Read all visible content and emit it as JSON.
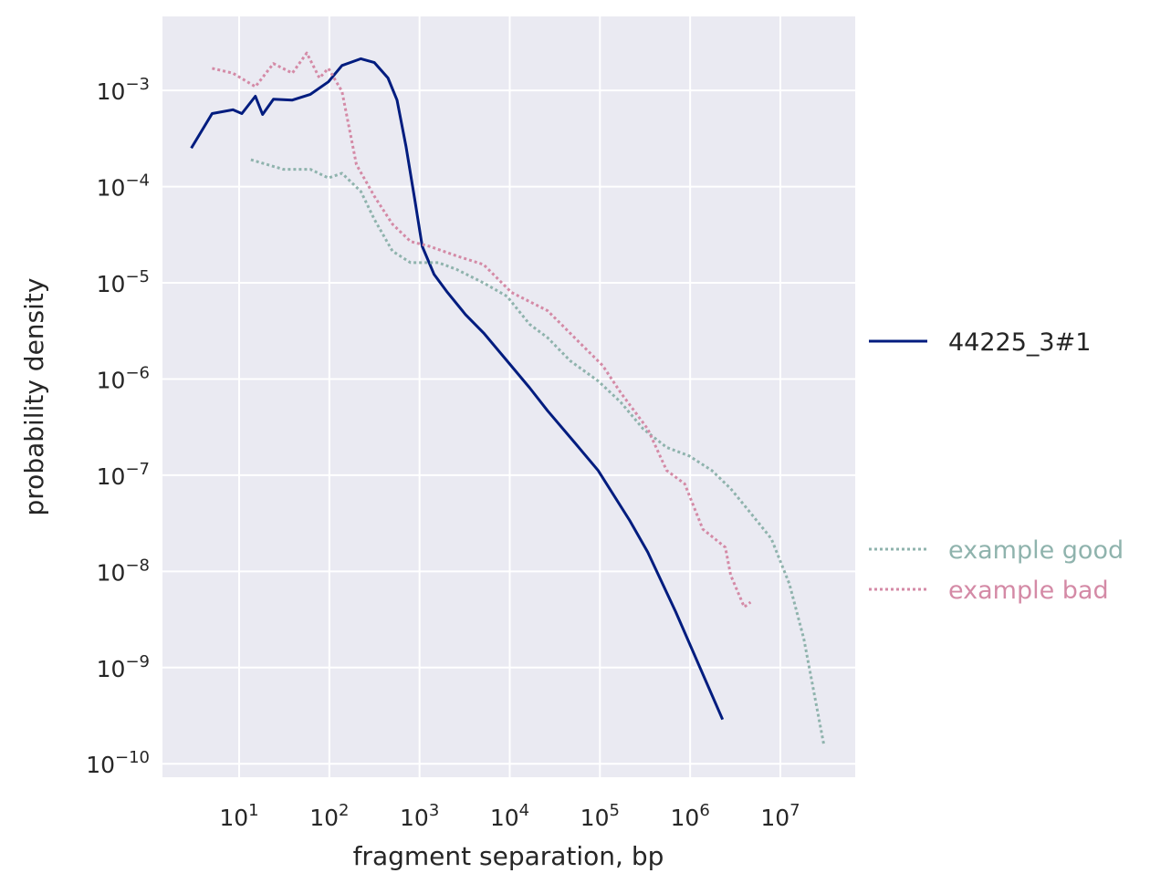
{
  "chart_data": {
    "type": "line",
    "xscale": "log",
    "yscale": "log",
    "xlabel": "fragment separation, bp",
    "ylabel": "probability density",
    "xlim_log10": [
      0.15,
      7.83
    ],
    "ylim_log10": [
      -10.14,
      -2.23
    ],
    "grid": true,
    "x_ticks": [
      {
        "base": "10",
        "exp": "1",
        "v": 1
      },
      {
        "base": "10",
        "exp": "2",
        "v": 2
      },
      {
        "base": "10",
        "exp": "3",
        "v": 3
      },
      {
        "base": "10",
        "exp": "4",
        "v": 4
      },
      {
        "base": "10",
        "exp": "5",
        "v": 5
      },
      {
        "base": "10",
        "exp": "6",
        "v": 6
      },
      {
        "base": "10",
        "exp": "7",
        "v": 7
      }
    ],
    "y_ticks": [
      {
        "base": "10",
        "exp": "−3",
        "v": -3
      },
      {
        "base": "10",
        "exp": "−4",
        "v": -4
      },
      {
        "base": "10",
        "exp": "−5",
        "v": -5
      },
      {
        "base": "10",
        "exp": "−6",
        "v": -6
      },
      {
        "base": "10",
        "exp": "−7",
        "v": -7
      },
      {
        "base": "10",
        "exp": "−8",
        "v": -8
      },
      {
        "base": "10",
        "exp": "−9",
        "v": -9
      },
      {
        "base": "10",
        "exp": "−10",
        "v": -10
      }
    ],
    "legend_placement": "right",
    "series": [
      {
        "name": "44225_3#1",
        "color": "#001c7f",
        "style": "solid",
        "x_log10": [
          0.47,
          0.7,
          0.93,
          1.03,
          1.18,
          1.26,
          1.38,
          1.59,
          1.79,
          1.99,
          2.14,
          2.35,
          2.5,
          2.65,
          2.75,
          2.85,
          2.95,
          3.03,
          3.16,
          3.31,
          3.51,
          3.71,
          3.97,
          4.22,
          4.42,
          4.72,
          4.98,
          5.33,
          5.53,
          5.84,
          6.36
        ],
        "y_log10": [
          -3.6,
          -3.24,
          -3.2,
          -3.24,
          -3.06,
          -3.25,
          -3.09,
          -3.1,
          -3.04,
          -2.91,
          -2.74,
          -2.67,
          -2.71,
          -2.87,
          -3.1,
          -3.58,
          -4.15,
          -4.62,
          -4.91,
          -5.1,
          -5.33,
          -5.52,
          -5.81,
          -6.09,
          -6.33,
          -6.66,
          -6.95,
          -7.47,
          -7.8,
          -8.42,
          -9.54
        ]
      },
      {
        "name": "example good",
        "color": "#8fb3ad",
        "style": "dotted",
        "x_log10": [
          1.13,
          1.49,
          1.79,
          1.99,
          2.14,
          2.35,
          2.5,
          2.7,
          2.9,
          3.21,
          3.41,
          3.71,
          3.97,
          4.22,
          4.42,
          4.67,
          4.98,
          5.23,
          5.48,
          5.74,
          5.99,
          6.24,
          6.45,
          6.65,
          6.9,
          7.1,
          7.26,
          7.48
        ],
        "y_log10": [
          -3.72,
          -3.82,
          -3.82,
          -3.91,
          -3.86,
          -4.05,
          -4.34,
          -4.67,
          -4.79,
          -4.79,
          -4.86,
          -5.0,
          -5.14,
          -5.43,
          -5.57,
          -5.81,
          -6.02,
          -6.24,
          -6.52,
          -6.71,
          -6.8,
          -6.95,
          -7.14,
          -7.37,
          -7.66,
          -8.13,
          -8.7,
          -9.79
        ]
      },
      {
        "name": "example bad",
        "color": "#d48aa6",
        "style": "dotted",
        "x_log10": [
          0.7,
          0.93,
          1.18,
          1.38,
          1.59,
          1.75,
          1.89,
          1.99,
          2.14,
          2.3,
          2.5,
          2.7,
          2.9,
          3.11,
          3.41,
          3.71,
          4.02,
          4.42,
          4.72,
          5.03,
          5.23,
          5.53,
          5.74,
          5.94,
          6.14,
          6.39,
          6.45,
          6.6,
          6.67
        ],
        "y_log10": [
          -2.77,
          -2.82,
          -2.96,
          -2.72,
          -2.82,
          -2.61,
          -2.87,
          -2.77,
          -3.01,
          -3.77,
          -4.1,
          -4.39,
          -4.57,
          -4.62,
          -4.72,
          -4.81,
          -5.1,
          -5.29,
          -5.57,
          -5.86,
          -6.14,
          -6.52,
          -6.95,
          -7.09,
          -7.56,
          -7.75,
          -8.04,
          -8.37,
          -8.32
        ]
      }
    ]
  }
}
